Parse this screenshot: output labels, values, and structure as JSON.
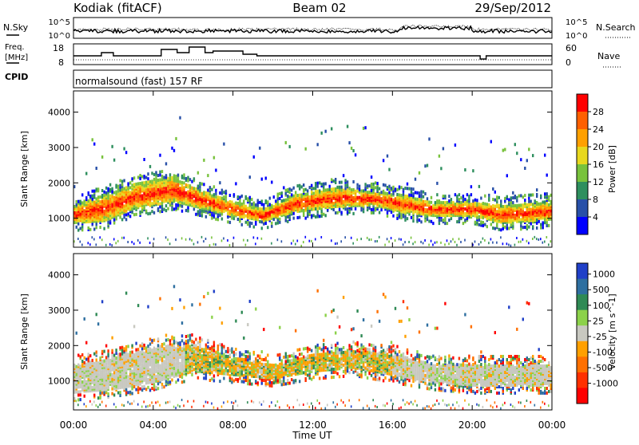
{
  "header": {
    "station": "Kodiak (fitACF)",
    "beam": "Beam 02",
    "date": "29/Sep/2012"
  },
  "noise_panel": {
    "left_label": "N.Sky",
    "right_label": "N.Search",
    "left_ticks": [
      "10^5",
      "10^0"
    ],
    "right_ticks": [
      "10^5",
      "10^0"
    ]
  },
  "freq_panel": {
    "left_label_1": "Freq.",
    "left_label_2": "[MHz]",
    "right_label": "Nave",
    "left_ticks": [
      "18",
      "8"
    ],
    "right_ticks": [
      "60",
      "0"
    ]
  },
  "cpid": {
    "label": "CPID",
    "text": "normalsound (fast) 157 RF"
  },
  "chart_data": [
    {
      "type": "heatmap",
      "name_printed": "Power",
      "ylabel": "Slant Range [km]",
      "yticks": [
        1000,
        2000,
        3000,
        4000
      ],
      "ylim": [
        180,
        4600
      ],
      "xlabel": "Time UT",
      "xticks": [
        "00:00",
        "04:00",
        "08:00",
        "12:00",
        "16:00",
        "20:00",
        "00:00"
      ],
      "xlim_hours": [
        0,
        24
      ],
      "colorbar": {
        "label": "Power [dB]",
        "ticks": [
          "4",
          "8",
          "12",
          "16",
          "20",
          "24",
          "28"
        ],
        "colors": [
          "#0000ff",
          "#2850a8",
          "#2e8f5e",
          "#78c23c",
          "#e8d81e",
          "#ffa000",
          "#ff6000",
          "#ff0000"
        ]
      },
      "bands_km": [
        {
          "t": 0.0,
          "lo": 900,
          "hi": 1400
        },
        {
          "t": 1.5,
          "lo": 950,
          "hi": 1700
        },
        {
          "t": 3.0,
          "lo": 1300,
          "hi": 2000
        },
        {
          "t": 5.0,
          "lo": 1500,
          "hi": 2200
        },
        {
          "t": 6.5,
          "lo": 1300,
          "hi": 1800
        },
        {
          "t": 8.0,
          "lo": 1100,
          "hi": 1500
        },
        {
          "t": 9.5,
          "lo": 950,
          "hi": 1300
        },
        {
          "t": 11.0,
          "lo": 1200,
          "hi": 1700
        },
        {
          "t": 13.0,
          "lo": 1350,
          "hi": 1900
        },
        {
          "t": 15.0,
          "lo": 1400,
          "hi": 1800
        },
        {
          "t": 16.5,
          "lo": 1200,
          "hi": 1700
        },
        {
          "t": 18.0,
          "lo": 1100,
          "hi": 1500
        },
        {
          "t": 20.0,
          "lo": 1100,
          "hi": 1500
        },
        {
          "t": 21.5,
          "lo": 900,
          "hi": 1400
        },
        {
          "t": 24.0,
          "lo": 1000,
          "hi": 1500
        }
      ]
    },
    {
      "type": "heatmap",
      "name_printed": "Velocity",
      "ylabel": "Slant Range [km]",
      "yticks": [
        1000,
        2000,
        3000,
        4000
      ],
      "ylim": [
        180,
        4600
      ],
      "xlabel": "Time UT",
      "xticks": [
        "00:00",
        "04:00",
        "08:00",
        "12:00",
        "16:00",
        "20:00",
        "00:00"
      ],
      "xlim_hours": [
        0,
        24
      ],
      "colorbar": {
        "label": "Velocity [m s^-1]",
        "ticks": [
          "1000",
          "500",
          "100",
          "25",
          "-25",
          "-100",
          "-500",
          "-1000"
        ],
        "colors": [
          "#2040c8",
          "#2e6fa0",
          "#2f8a55",
          "#8cd24a",
          "#c8c8c0",
          "#ffa000",
          "#ff7000",
          "#ff3000",
          "#ff0000"
        ]
      },
      "bands_km": [
        {
          "t": 0.0,
          "lo": 700,
          "hi": 1500
        },
        {
          "t": 2.0,
          "lo": 800,
          "hi": 1700
        },
        {
          "t": 4.0,
          "lo": 1000,
          "hi": 2000
        },
        {
          "t": 6.0,
          "lo": 1300,
          "hi": 2100
        },
        {
          "t": 8.0,
          "lo": 1200,
          "hi": 1700
        },
        {
          "t": 10.0,
          "lo": 1100,
          "hi": 1500
        },
        {
          "t": 12.0,
          "lo": 1300,
          "hi": 1800
        },
        {
          "t": 14.0,
          "lo": 1400,
          "hi": 1900
        },
        {
          "t": 16.0,
          "lo": 1200,
          "hi": 1800
        },
        {
          "t": 18.0,
          "lo": 1000,
          "hi": 1500
        },
        {
          "t": 20.0,
          "lo": 900,
          "hi": 1500
        },
        {
          "t": 22.0,
          "lo": 900,
          "hi": 1500
        },
        {
          "t": 24.0,
          "lo": 900,
          "hi": 1500
        }
      ]
    }
  ]
}
